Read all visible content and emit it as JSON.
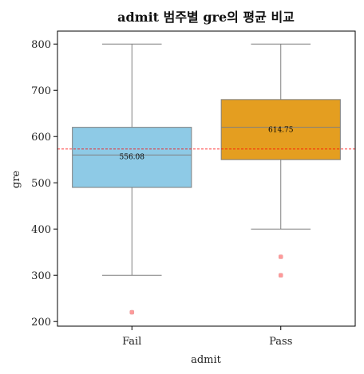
{
  "chart_data": {
    "type": "box",
    "title": "admit 범주별 gre의 평균 비교",
    "xlabel": "admit",
    "ylabel": "gre",
    "ylim": [
      190,
      828
    ],
    "yticks": [
      200,
      300,
      400,
      500,
      600,
      700,
      800
    ],
    "categories": [
      "Fail",
      "Pass"
    ],
    "boxes": [
      {
        "category": "Fail",
        "whisker_low": 300,
        "q1": 490,
        "median": 560,
        "q3": 620,
        "whisker_high": 800,
        "outliers": [
          220
        ],
        "mean": 556.08,
        "mean_label": "556.08",
        "color": "#8ecae6"
      },
      {
        "category": "Pass",
        "whisker_low": 400,
        "q1": 550,
        "median": 620,
        "q3": 680,
        "whisker_high": 800,
        "outliers": [
          340,
          300
        ],
        "mean": 614.75,
        "mean_label": "614.75",
        "color": "#e49e20"
      }
    ],
    "overall_mean_line": 573,
    "overall_mean_line_color": "#ff0000",
    "outlier_color": "#ff9999"
  }
}
